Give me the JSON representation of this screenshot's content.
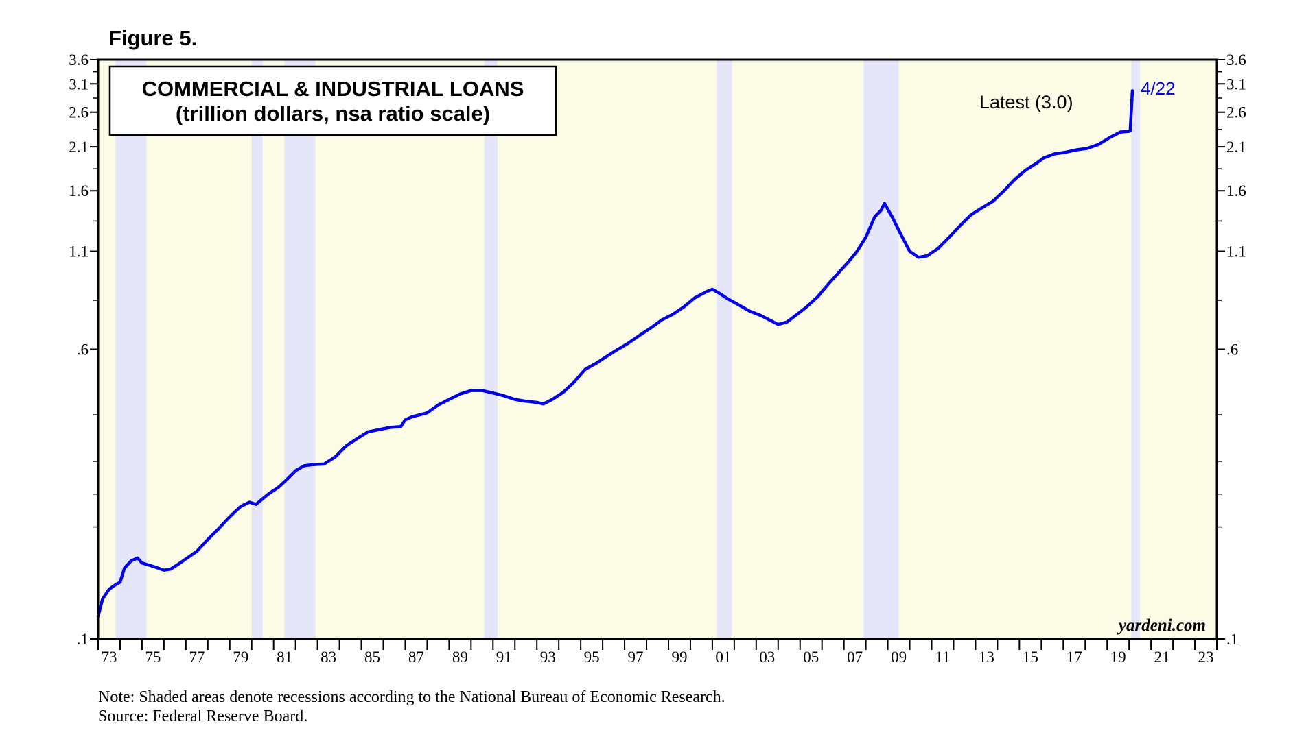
{
  "figure_label": "Figure 5.",
  "footnotes": {
    "note": "Note: Shaded areas denote recessions according to the National Bureau of Economic Research.",
    "source": "Source: Federal Reserve Board."
  },
  "colors": {
    "plot_background": "#fcfbe6",
    "recession_band": "#e6e6fa",
    "line": "#0000ee",
    "latest_label": "#0000ee"
  },
  "chart_data": {
    "type": "line",
    "title": "COMMERCIAL & INDUSTRIAL LOANS",
    "subtitle": "(trillion dollars, nsa ratio scale)",
    "y_scale": "log",
    "ylim": [
      0.1,
      3.6
    ],
    "xlim": [
      1973,
      2024
    ],
    "y_ticks": [
      {
        "value": 3.6,
        "label": "3.6"
      },
      {
        "value": 3.1,
        "label": "3.1"
      },
      {
        "value": 2.6,
        "label": "2.6"
      },
      {
        "value": 2.1,
        "label": "2.1"
      },
      {
        "value": 1.6,
        "label": "1.6"
      },
      {
        "value": 1.1,
        "label": "1.1"
      },
      {
        "value": 0.6,
        "label": ".6"
      },
      {
        "value": 0.1,
        "label": ".1"
      }
    ],
    "y_minor_ticks": [
      0.2,
      0.3,
      0.4
    ],
    "x_ticks": [
      {
        "value": 1973,
        "label": "73"
      },
      {
        "value": 1975,
        "label": "75"
      },
      {
        "value": 1977,
        "label": "77"
      },
      {
        "value": 1979,
        "label": "79"
      },
      {
        "value": 1981,
        "label": "81"
      },
      {
        "value": 1983,
        "label": "83"
      },
      {
        "value": 1985,
        "label": "85"
      },
      {
        "value": 1987,
        "label": "87"
      },
      {
        "value": 1989,
        "label": "89"
      },
      {
        "value": 1991,
        "label": "91"
      },
      {
        "value": 1993,
        "label": "93"
      },
      {
        "value": 1995,
        "label": "95"
      },
      {
        "value": 1997,
        "label": "97"
      },
      {
        "value": 1999,
        "label": "99"
      },
      {
        "value": 2001,
        "label": "01"
      },
      {
        "value": 2003,
        "label": "03"
      },
      {
        "value": 2005,
        "label": "05"
      },
      {
        "value": 2007,
        "label": "07"
      },
      {
        "value": 2009,
        "label": "09"
      },
      {
        "value": 2011,
        "label": "11"
      },
      {
        "value": 2013,
        "label": "13"
      },
      {
        "value": 2015,
        "label": "15"
      },
      {
        "value": 2017,
        "label": "17"
      },
      {
        "value": 2019,
        "label": "19"
      },
      {
        "value": 2021,
        "label": "21"
      },
      {
        "value": 2023,
        "label": "23"
      }
    ],
    "recessions": [
      {
        "start": 1973.8,
        "end": 1975.2
      },
      {
        "start": 1980.0,
        "end": 1980.5
      },
      {
        "start": 1981.5,
        "end": 1982.9
      },
      {
        "start": 1990.6,
        "end": 1991.2
      },
      {
        "start": 2001.2,
        "end": 2001.9
      },
      {
        "start": 2007.9,
        "end": 2009.5
      },
      {
        "start": 2020.1,
        "end": 2020.5
      }
    ],
    "series": [
      {
        "x": [
          1973.0,
          1973.2,
          1973.5,
          1973.8,
          1974.0,
          1974.2,
          1974.5,
          1974.8,
          1975.0,
          1975.3,
          1975.6,
          1976.0,
          1976.3,
          1976.6,
          1977.0,
          1977.5,
          1978.0,
          1978.5,
          1979.0,
          1979.5,
          1979.9,
          1980.2,
          1980.5,
          1980.8,
          1981.2,
          1981.6,
          1982.0,
          1982.4,
          1982.8,
          1983.3,
          1983.8,
          1984.3,
          1984.8,
          1985.3,
          1985.8,
          1986.3,
          1986.8,
          1986.95,
          1987.0,
          1987.3,
          1988.0,
          1988.5,
          1989.0,
          1989.5,
          1990.0,
          1990.5,
          1991.0,
          1991.5,
          1992.0,
          1992.5,
          1993.0,
          1993.3,
          1993.7,
          1994.2,
          1994.7,
          1995.2,
          1995.7,
          1996.2,
          1996.7,
          1997.2,
          1997.7,
          1998.2,
          1998.7,
          1999.2,
          1999.7,
          2000.2,
          2000.7,
          2001.0,
          2001.3,
          2001.7,
          2002.2,
          2002.7,
          2003.2,
          2003.7,
          2004.0,
          2004.4,
          2004.8,
          2005.3,
          2005.8,
          2006.3,
          2006.8,
          2007.2,
          2007.6,
          2008.0,
          2008.4,
          2008.7,
          2008.85,
          2009.2,
          2009.6,
          2010.0,
          2010.4,
          2010.8,
          2011.3,
          2011.8,
          2012.3,
          2012.8,
          2013.3,
          2013.8,
          2014.3,
          2014.8,
          2015.3,
          2015.8,
          2016.1,
          2016.6,
          2017.1,
          2017.6,
          2018.1,
          2018.6,
          2019.1,
          2019.6,
          2020.0,
          2020.05,
          2020.15
        ],
        "y": [
          0.115,
          0.128,
          0.136,
          0.14,
          0.142,
          0.155,
          0.162,
          0.165,
          0.16,
          0.158,
          0.156,
          0.153,
          0.154,
          0.158,
          0.164,
          0.172,
          0.185,
          0.198,
          0.213,
          0.227,
          0.233,
          0.23,
          0.238,
          0.246,
          0.255,
          0.268,
          0.283,
          0.292,
          0.294,
          0.295,
          0.308,
          0.33,
          0.345,
          0.36,
          0.365,
          0.37,
          0.372,
          0.384,
          0.388,
          0.395,
          0.405,
          0.425,
          0.44,
          0.455,
          0.465,
          0.465,
          0.458,
          0.45,
          0.44,
          0.435,
          0.432,
          0.428,
          0.44,
          0.46,
          0.49,
          0.53,
          0.55,
          0.575,
          0.6,
          0.625,
          0.655,
          0.685,
          0.72,
          0.745,
          0.78,
          0.825,
          0.855,
          0.87,
          0.85,
          0.82,
          0.79,
          0.76,
          0.74,
          0.715,
          0.7,
          0.71,
          0.74,
          0.78,
          0.83,
          0.9,
          0.97,
          1.03,
          1.1,
          1.2,
          1.36,
          1.42,
          1.48,
          1.36,
          1.22,
          1.1,
          1.06,
          1.07,
          1.12,
          1.2,
          1.29,
          1.38,
          1.44,
          1.5,
          1.6,
          1.72,
          1.82,
          1.9,
          1.96,
          2.01,
          2.03,
          2.06,
          2.08,
          2.13,
          2.22,
          2.3,
          2.31,
          2.32,
          2.97
        ]
      }
    ],
    "annotations": {
      "latest_label": "Latest (3.0)",
      "latest_date": "4/22",
      "watermark": "yardeni.com"
    }
  }
}
